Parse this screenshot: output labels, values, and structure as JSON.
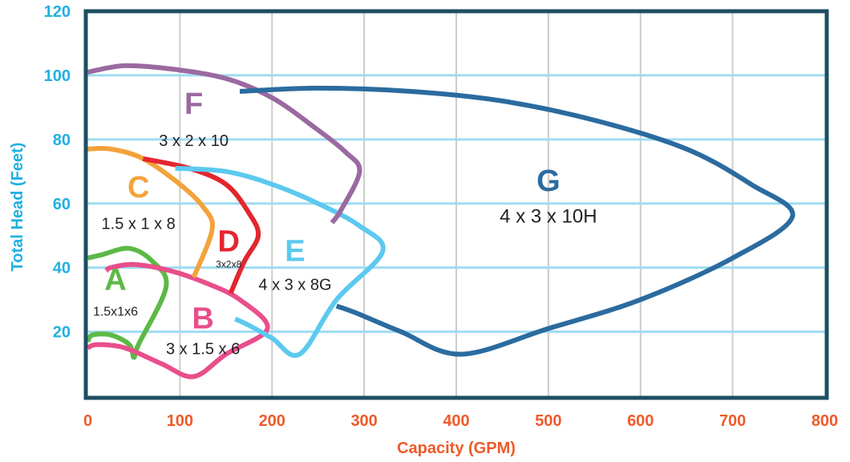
{
  "chart_data": {
    "type": "line",
    "xlabel": "Capacity (GPM)",
    "ylabel": "Total Head  (Feet)",
    "xlim": [
      0,
      800
    ],
    "ylim": [
      0,
      120
    ],
    "x_ticks": [
      "0",
      "100",
      "200",
      "300",
      "400",
      "500",
      "600",
      "700",
      "800"
    ],
    "y_ticks": [
      "20",
      "40",
      "60",
      "80",
      "100",
      "120"
    ],
    "grid": true,
    "colors": {
      "frame": "#1d4f61",
      "grid": "#cccccc",
      "hgrid": "#9fdcf2",
      "x_axis_text": "#ee5a2a",
      "y_axis_text": "#1fb1e0"
    },
    "series": [
      {
        "letter": "A",
        "model": "1.5x1x6",
        "color": "#5cb946",
        "points": [
          [
            0,
            17
          ],
          [
            5,
            19
          ],
          [
            25,
            19
          ],
          [
            45,
            16
          ],
          [
            50,
            12
          ],
          [
            55,
            16
          ],
          [
            85,
            34
          ],
          [
            70,
            42
          ],
          [
            45,
            46
          ],
          [
            15,
            44
          ],
          [
            0,
            43
          ]
        ]
      },
      {
        "letter": "B",
        "model": "3 x 1.5 x 6",
        "color": "#e94e8b",
        "points": [
          [
            0,
            15
          ],
          [
            10,
            16
          ],
          [
            40,
            15
          ],
          [
            80,
            10
          ],
          [
            115,
            6
          ],
          [
            150,
            13
          ],
          [
            195,
            21
          ],
          [
            165,
            30
          ],
          [
            130,
            35
          ],
          [
            90,
            39
          ],
          [
            50,
            41
          ],
          [
            25,
            40
          ],
          [
            20,
            39
          ]
        ]
      },
      {
        "letter": "C",
        "model": "1.5 x 1 x 8",
        "color": "#f4a23a",
        "points": [
          [
            0,
            77
          ],
          [
            25,
            77
          ],
          [
            60,
            74
          ],
          [
            100,
            66
          ],
          [
            125,
            59
          ],
          [
            135,
            52
          ],
          [
            115,
            37
          ]
        ]
      },
      {
        "letter": "D",
        "model": "3x2x8",
        "color": "#e3262e",
        "points": [
          [
            60,
            74
          ],
          [
            110,
            71
          ],
          [
            150,
            66
          ],
          [
            175,
            57
          ],
          [
            185,
            50
          ],
          [
            170,
            42
          ],
          [
            155,
            32
          ]
        ]
      },
      {
        "letter": "E",
        "model": "4 x 3 x 8G",
        "color": "#5cc9ef",
        "points": [
          [
            95,
            71
          ],
          [
            150,
            70
          ],
          [
            200,
            66
          ],
          [
            250,
            60
          ],
          [
            295,
            53
          ],
          [
            320,
            45
          ],
          [
            270,
            30
          ],
          [
            230,
            13
          ],
          [
            200,
            18
          ],
          [
            175,
            22
          ],
          [
            160,
            24
          ]
        ]
      },
      {
        "letter": "F",
        "model": "3 x 2 x 10",
        "color": "#9a69a1",
        "points": [
          [
            0,
            101
          ],
          [
            40,
            103
          ],
          [
            90,
            102
          ],
          [
            150,
            99
          ],
          [
            200,
            93
          ],
          [
            245,
            84
          ],
          [
            280,
            76
          ],
          [
            295,
            70
          ],
          [
            275,
            58
          ],
          [
            265,
            54
          ]
        ]
      },
      {
        "letter": "G",
        "model": "4 x 3 x 10H",
        "color": "#2b6b9f",
        "points": [
          [
            165,
            95
          ],
          [
            250,
            96
          ],
          [
            350,
            95
          ],
          [
            450,
            92
          ],
          [
            550,
            86
          ],
          [
            650,
            77
          ],
          [
            720,
            66
          ],
          [
            765,
            56
          ],
          [
            700,
            43
          ],
          [
            600,
            30
          ],
          [
            500,
            21
          ],
          [
            405,
            13
          ],
          [
            340,
            20
          ],
          [
            290,
            26
          ],
          [
            270,
            28
          ]
        ]
      }
    ],
    "labels": [
      {
        "text_of": "F",
        "letter_xy": [
          115,
          88
        ],
        "model_xy": [
          115,
          78
        ],
        "letter_color": "#9a69a1",
        "size": ""
      },
      {
        "text_of": "C",
        "letter_xy": [
          55,
          62
        ],
        "model_xy": [
          55,
          52
        ],
        "letter_color": "#f4a23a",
        "size": ""
      },
      {
        "text_of": "D",
        "letter_xy": [
          153,
          45
        ],
        "model_xy": [
          153,
          40
        ],
        "letter_color": "#e3262e",
        "size": "tiny"
      },
      {
        "text_of": "E",
        "letter_xy": [
          225,
          42
        ],
        "model_xy": [
          225,
          33
        ],
        "letter_color": "#5cc9ef",
        "size": ""
      },
      {
        "text_of": "A",
        "letter_xy": [
          30,
          33
        ],
        "model_xy": [
          30,
          25
        ],
        "letter_color": "#5cb946",
        "size": "small"
      },
      {
        "text_of": "B",
        "letter_xy": [
          125,
          21
        ],
        "model_xy": [
          125,
          13
        ],
        "letter_color": "#e94e8b",
        "size": ""
      },
      {
        "text_of": "G",
        "letter_xy": [
          500,
          64
        ],
        "model_xy": [
          500,
          54
        ],
        "letter_color": "#2b6b9f",
        "size": "big"
      }
    ]
  }
}
